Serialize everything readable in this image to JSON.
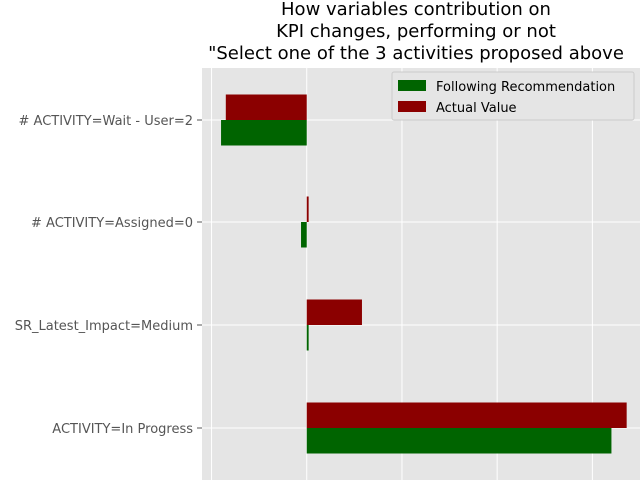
{
  "chart_data": {
    "type": "bar",
    "orientation": "horizontal",
    "title_lines": [
      "How variables contribution on",
      "KPI changes, performing or not",
      "\"Select one of the 3 activities proposed above"
    ],
    "categories": [
      "# ACTIVITY=Wait - User=2",
      "# ACTIVITY=Assigned=0",
      "SR_Latest_Impact=Medium",
      "ACTIVITY=In Progress"
    ],
    "series": [
      {
        "name": "Following Recommendation",
        "color": "#006400",
        "values": [
          -0.09,
          -0.006,
          0.002,
          0.32
        ]
      },
      {
        "name": "Actual Value",
        "color": "#8b0000",
        "values": [
          -0.085,
          0.002,
          0.058,
          0.336
        ]
      }
    ],
    "xlim": [
      -0.11,
      0.35
    ],
    "xticks": [
      -0.1,
      0.0,
      0.1,
      0.2,
      0.3
    ],
    "grid": true,
    "legend_position": "top-right",
    "background": "#e5e5e5",
    "grid_color": "#ffffff"
  }
}
